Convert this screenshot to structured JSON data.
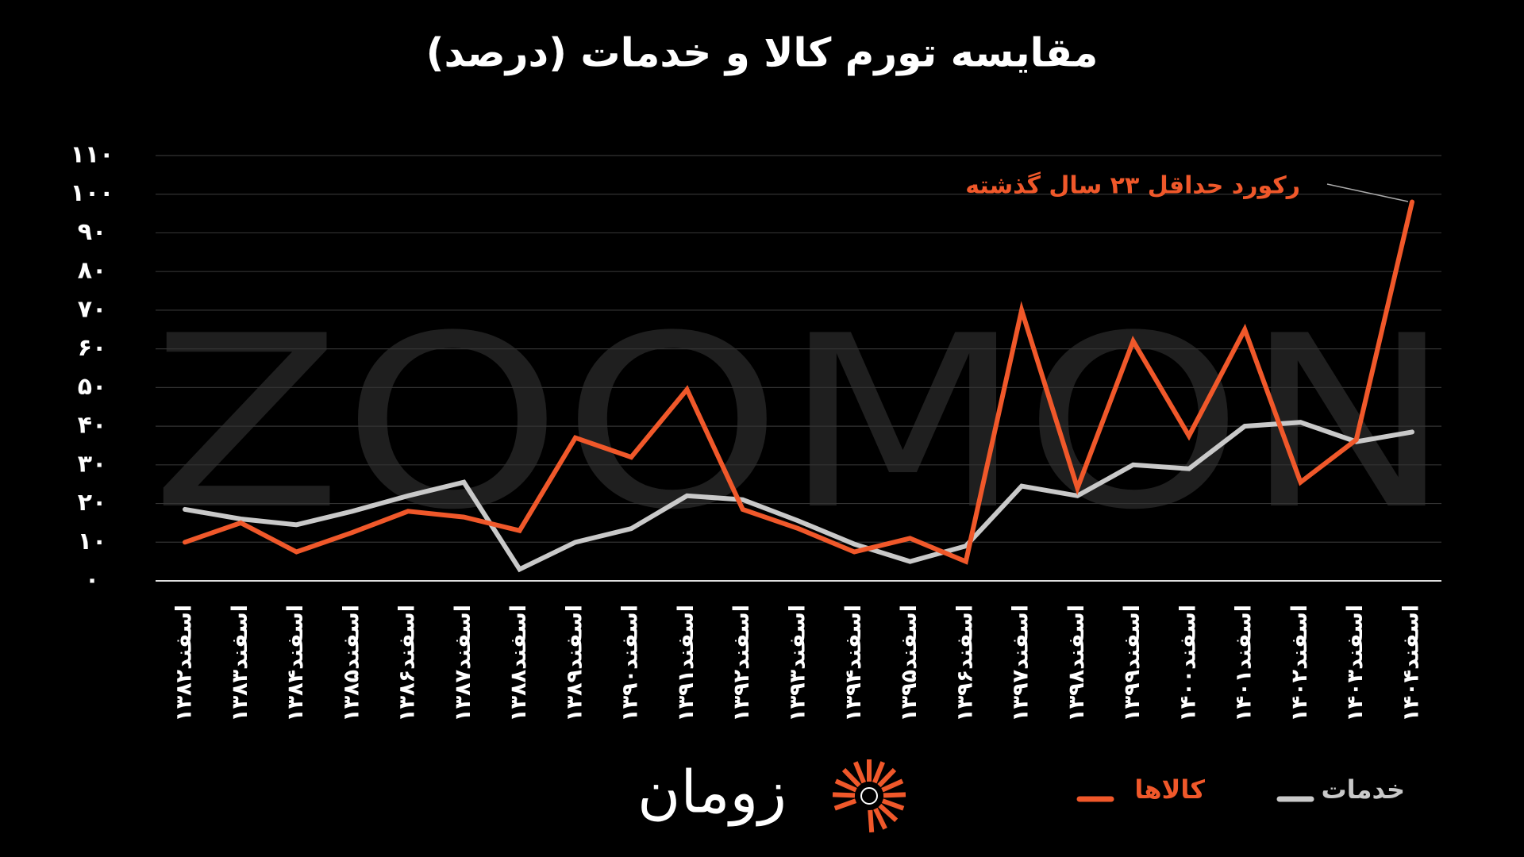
{
  "chart_data": {
    "type": "line",
    "title": "مقایسه تورم کالا و خدمات (درصد)",
    "watermark": "ZOOMON",
    "logo_text": "زومان",
    "annotation": "رکورد حداقل ۲۳ سال گذشته",
    "categories": [
      "اسفند۱۳۸۲",
      "اسفند۱۳۸۳",
      "اسفند۱۳۸۴",
      "اسفند۱۳۸۵",
      "اسفند۱۳۸۶",
      "اسفند۱۳۸۷",
      "اسفند۱۳۸۸",
      "اسفند۱۳۸۹",
      "اسفند۱۳۹۰",
      "اسفند۱۳۹۱",
      "اسفند۱۳۹۲",
      "اسفند۱۳۹۳",
      "اسفند۱۳۹۴",
      "اسفند۱۳۹۵",
      "اسفند۱۳۹۶",
      "اسفند۱۳۹۷",
      "اسفند۱۳۹۸",
      "اسفند۱۳۹۹",
      "اسفند۱۴۰۰",
      "اسفند۱۴۰۱",
      "اسفند۱۴۰۲",
      "اسفند۱۴۰۳",
      "اسفند۱۴۰۴"
    ],
    "series": [
      {
        "name": "خدمات",
        "color": "#c9c9c9",
        "values": [
          18.5,
          16,
          14.5,
          18,
          22,
          25.5,
          3,
          10,
          13.5,
          22,
          21,
          15.5,
          9.5,
          5,
          9,
          24.5,
          22,
          30,
          29,
          40,
          41,
          36,
          38.5
        ]
      },
      {
        "name": "کالاها",
        "color": "#f0582a",
        "values": [
          10,
          15,
          7.5,
          12.5,
          18,
          16.5,
          13,
          37,
          32,
          49.5,
          18.5,
          13.5,
          7.5,
          11,
          5,
          70,
          24,
          62,
          37.5,
          65,
          25.5,
          36.5,
          98
        ]
      }
    ],
    "ylim": [
      0,
      110
    ],
    "yticks": [
      {
        "value": 0,
        "label": "۰"
      },
      {
        "value": 10,
        "label": "۱۰"
      },
      {
        "value": 20,
        "label": "۲۰"
      },
      {
        "value": 30,
        "label": "۳۰"
      },
      {
        "value": 40,
        "label": "۴۰"
      },
      {
        "value": 50,
        "label": "۵۰"
      },
      {
        "value": 60,
        "label": "۶۰"
      },
      {
        "value": 70,
        "label": "۷۰"
      },
      {
        "value": 80,
        "label": "۸۰"
      },
      {
        "value": 90,
        "label": "۹۰"
      },
      {
        "value": 100,
        "label": "۱۰۰"
      },
      {
        "value": 110,
        "label": "۱۱۰"
      }
    ],
    "grid": true,
    "legend": "bottom"
  }
}
